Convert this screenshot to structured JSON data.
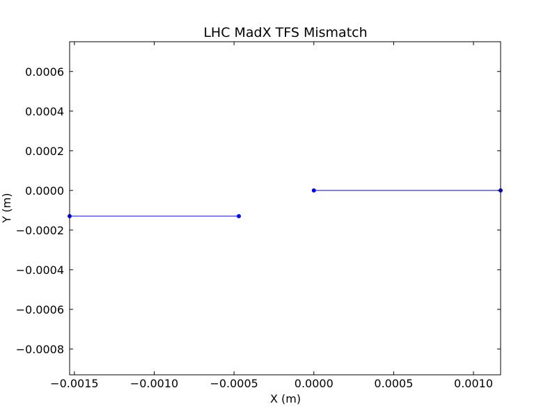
{
  "chart_data": {
    "type": "line",
    "title": "LHC MadX TFS Mismatch",
    "xlabel": "X (m)",
    "ylabel": "Y (m)",
    "xlim": [
      -0.00153,
      0.00117
    ],
    "ylim": [
      -0.00093,
      0.00075
    ],
    "xticks": [
      -0.0015,
      -0.001,
      -0.0005,
      0.0,
      0.0005,
      0.001
    ],
    "xtick_labels": [
      "−0.0015",
      "−0.0010",
      "−0.0005",
      "0.0000",
      "0.0005",
      "0.0010"
    ],
    "yticks": [
      0.0006,
      0.0004,
      0.0002,
      0.0,
      -0.0002,
      -0.0004,
      -0.0006,
      -0.0008
    ],
    "ytick_labels": [
      "0.0006",
      "0.0004",
      "0.0002",
      "0.0000",
      "−0.0002",
      "−0.0004",
      "−0.0006",
      "−0.0008"
    ],
    "grid": false,
    "series_color": "#0000ff",
    "series": [
      {
        "x": [
          -0.00153,
          -0.00047
        ],
        "y": [
          -0.00013,
          -0.00013
        ]
      },
      {
        "x": [
          0.0,
          0.00117
        ],
        "y": [
          0.0,
          0.0
        ]
      }
    ]
  }
}
